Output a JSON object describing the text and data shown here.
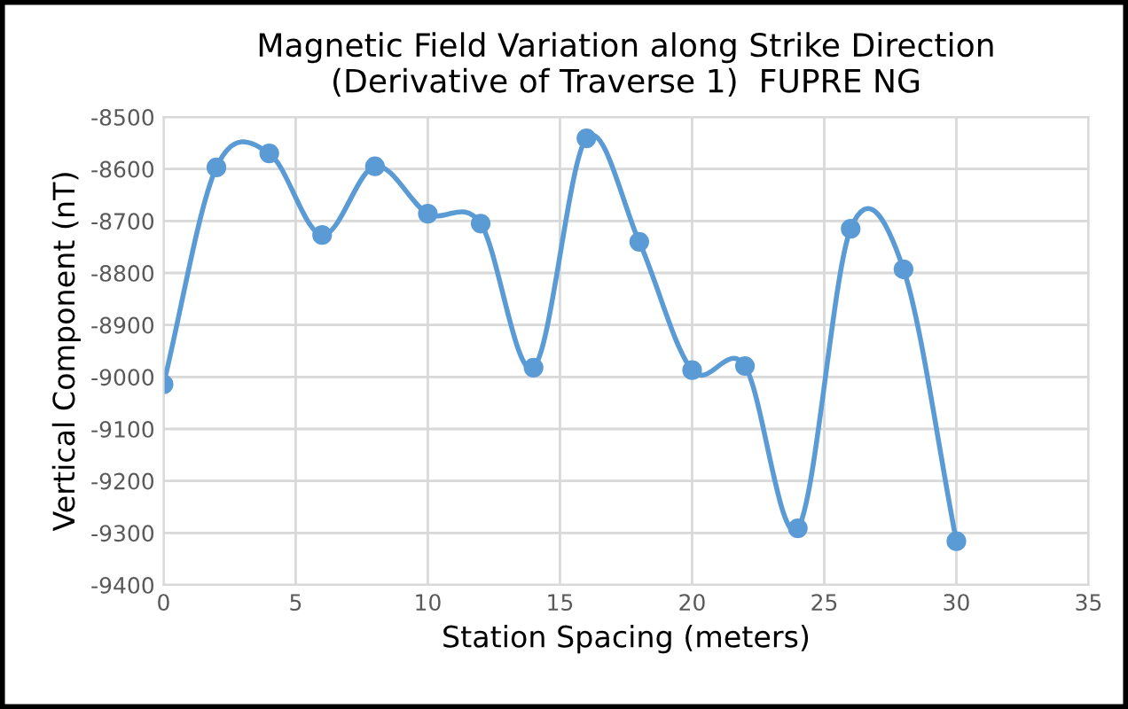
{
  "chart_data": {
    "type": "line",
    "title": "Magnetic Field Variation along Strike Direction\n(Derivative of Traverse 1)  FUPRE NG",
    "xlabel": "Station Spacing (meters)",
    "ylabel": "Vertical Component (nT)",
    "x": [
      0,
      2,
      4,
      6,
      8,
      10,
      12,
      14,
      16,
      18,
      20,
      22,
      24,
      26,
      28,
      30
    ],
    "series": [
      {
        "color": "#5b9bd5",
        "values": [
          -9014,
          -8597,
          -8570,
          -8727,
          -8595,
          -8686,
          -8705,
          -8982,
          -8541,
          -8740,
          -8987,
          -8979,
          -9291,
          -8715,
          -8793,
          -9316
        ]
      }
    ],
    "xlim": [
      0,
      35
    ],
    "xticks": [
      0,
      5,
      10,
      15,
      20,
      25,
      30,
      35
    ],
    "ylim": [
      -9400,
      -8500
    ],
    "yticks": [
      -9400,
      -9300,
      -9200,
      -9100,
      -9000,
      -8900,
      -8800,
      -8700,
      -8600,
      -8500
    ],
    "grid": true,
    "marker": "circle",
    "line_style": "solid",
    "legend": false
  }
}
